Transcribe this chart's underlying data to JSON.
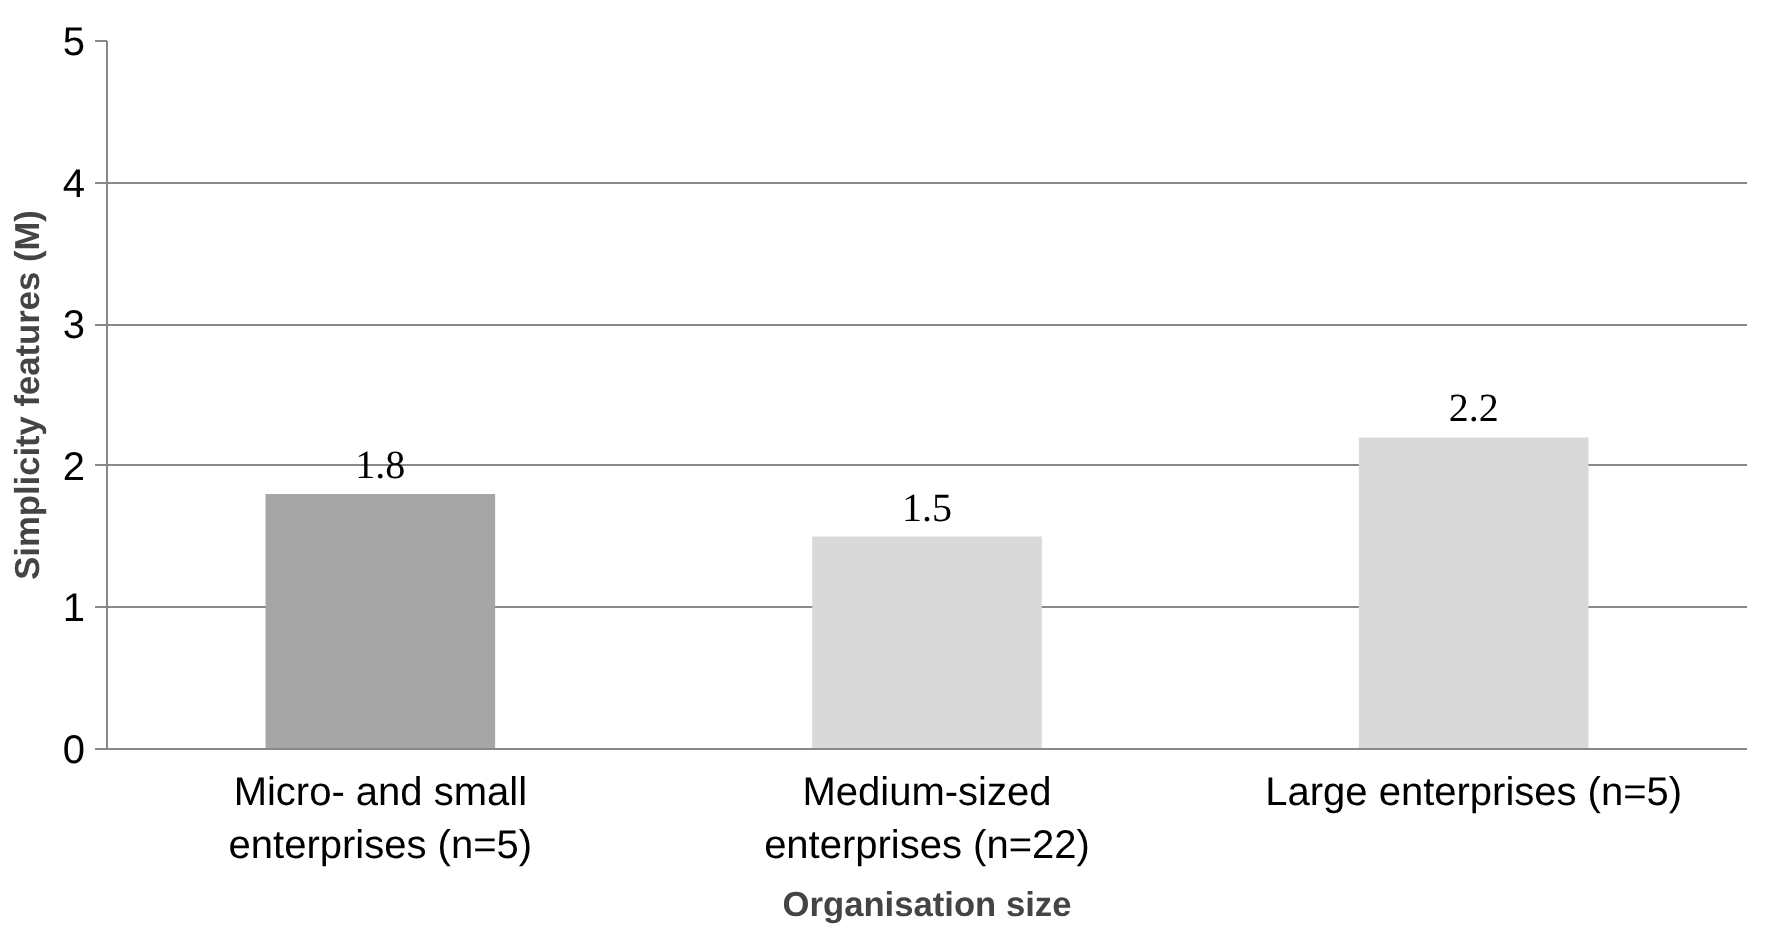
{
  "chart_data": {
    "type": "bar",
    "xlabel": "Organisation size",
    "ylabel": "Simplicity features (M)",
    "categories": [
      "Micro- and small enterprises (n=5)",
      "Medium-sized enterprises (n=22)",
      "Large enterprises (n=5)"
    ],
    "values": [
      1.8,
      1.5,
      2.2
    ],
    "colors": [
      "#a6a6a6",
      "#d9d9d9",
      "#d9d9d9"
    ],
    "ylim": [
      0,
      5
    ],
    "yticks": [
      0,
      1,
      2,
      3,
      4,
      5
    ],
    "grid": "y",
    "data_labels": true
  }
}
